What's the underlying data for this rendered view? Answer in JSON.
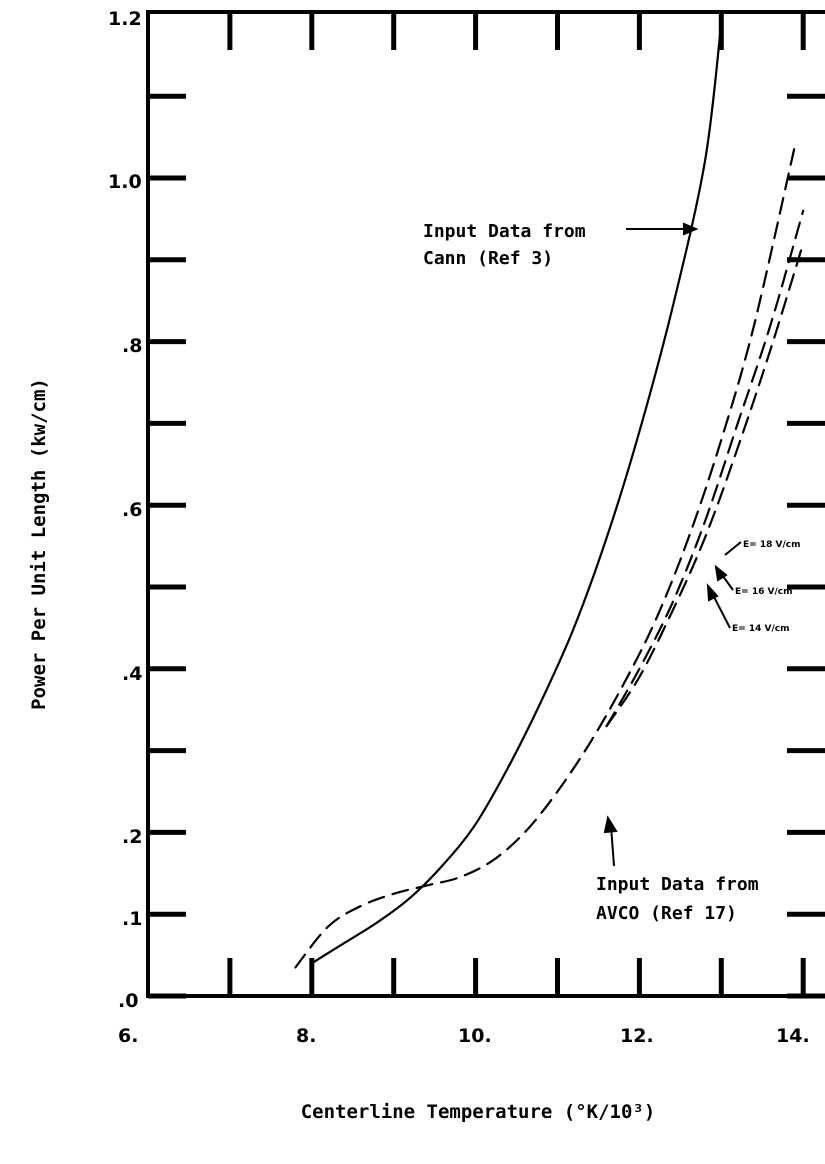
{
  "chart_data": {
    "type": "line",
    "xlabel": "Centerline Temperature (°K/10³)",
    "ylabel": "Power Per Unit Length (kw/cm)",
    "xlim": [
      6,
      14
    ],
    "ylim": [
      0,
      1.3
    ],
    "x_tick_labels": [
      "6.",
      "8.",
      "10.",
      "12.",
      "14."
    ],
    "y_tick_labels": [
      ".0",
      ".1",
      ".2",
      ".4",
      ".6",
      ".8",
      "1.0",
      "1.2"
    ],
    "series": [
      {
        "style": "solid",
        "x": [
          8.0,
          8.4,
          8.8,
          9.2,
          9.6,
          10.0,
          10.4,
          10.8,
          11.2,
          11.6,
          12.0,
          12.4,
          12.8,
          13.0
        ],
        "y": [
          0.04,
          0.065,
          0.09,
          0.12,
          0.16,
          0.21,
          0.28,
          0.36,
          0.45,
          0.56,
          0.69,
          0.84,
          1.02,
          1.19
        ]
      },
      {
        "style": "dashed",
        "x": [
          7.8,
          8.2,
          8.6,
          9.0,
          9.4,
          9.8,
          10.2,
          10.6,
          11.0,
          11.4,
          11.8,
          12.2,
          12.6,
          13.0,
          13.4,
          13.9
        ],
        "y": [
          0.035,
          0.085,
          0.11,
          0.125,
          0.135,
          0.145,
          0.165,
          0.2,
          0.25,
          0.31,
          0.38,
          0.46,
          0.56,
          0.68,
          0.82,
          1.04
        ]
      },
      {
        "style": "dashed",
        "x": [
          11.6,
          12.0,
          12.4,
          12.8,
          13.2,
          13.6,
          14.0
        ],
        "y": [
          0.33,
          0.4,
          0.48,
          0.58,
          0.7,
          0.82,
          0.96
        ]
      },
      {
        "style": "dashed",
        "x": [
          11.6,
          12.0,
          12.4,
          12.8,
          13.2,
          13.6,
          14.0
        ],
        "y": [
          0.33,
          0.39,
          0.47,
          0.56,
          0.67,
          0.79,
          0.92
        ]
      }
    ],
    "annotations": [
      {
        "lines": [
          "Input Data from",
          "Cann (Ref 3)"
        ]
      },
      {
        "lines": [
          "Input Data from",
          "AVCO (Ref 17)"
        ]
      },
      {
        "lines": [
          "E= 18 V/cm"
        ]
      },
      {
        "lines": [
          "E= 16 V/cm"
        ]
      },
      {
        "lines": [
          "E= 14 V/cm"
        ]
      }
    ]
  }
}
